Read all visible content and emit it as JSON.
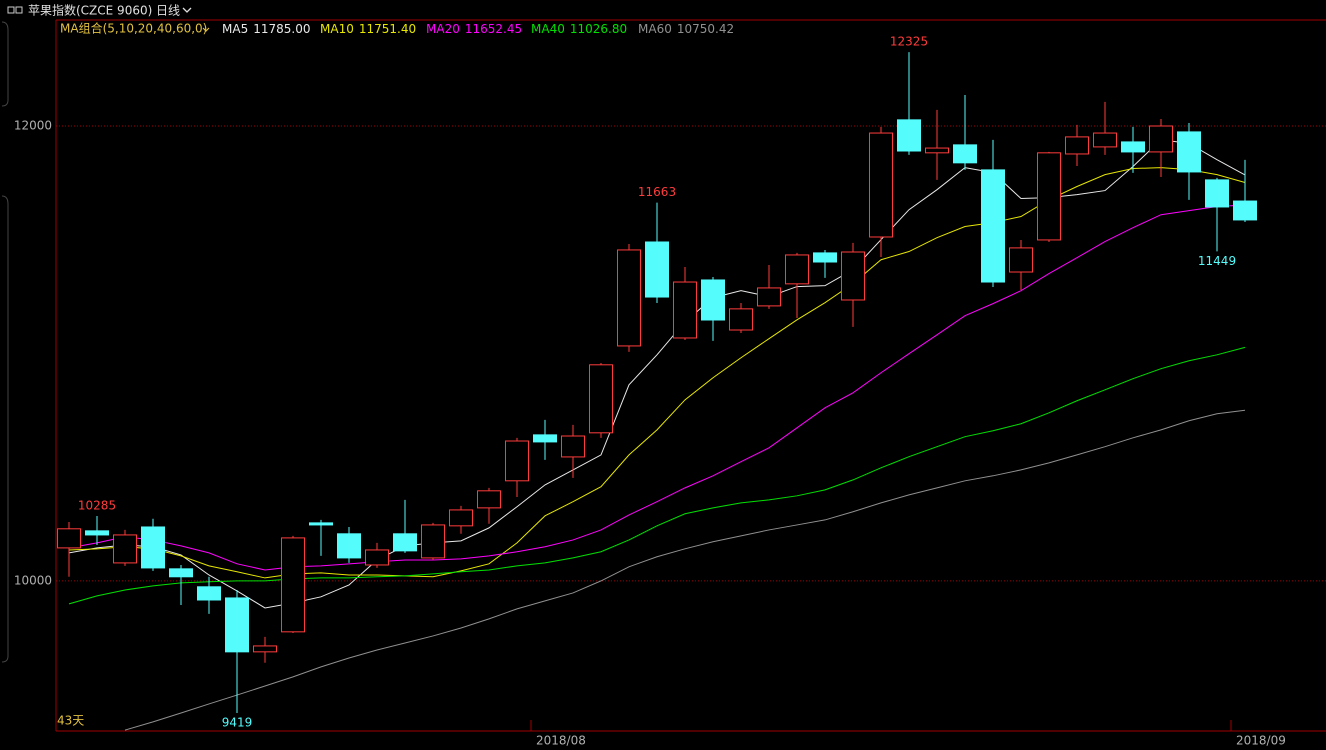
{
  "header": {
    "title": "苹果指数(CZCE 9060)",
    "period": "日线"
  },
  "chart_data": {
    "type": "candlestick",
    "categories": [
      null,
      null,
      null,
      null,
      null,
      null,
      null,
      null,
      null,
      null,
      null,
      null,
      null,
      null,
      null,
      null,
      null,
      "2018/08",
      null,
      null,
      null,
      null,
      null,
      null,
      null,
      null,
      null,
      null,
      null,
      null,
      null,
      null,
      null,
      null,
      null,
      null,
      null,
      null,
      null,
      null,
      null,
      null,
      "2018/09"
    ],
    "open": [
      10145,
      10220,
      10079,
      10237,
      10053,
      9974,
      9925,
      9688,
      9776,
      10255,
      10207,
      10070,
      10207,
      10101,
      10242,
      10321,
      10440,
      10642,
      10545,
      10651,
      11033,
      11490,
      11068,
      11323,
      11103,
      11209,
      11306,
      11442,
      11235,
      11512,
      12027,
      11882,
      11917,
      11807,
      11358,
      11499,
      11877,
      11908,
      11930,
      11886,
      11974,
      11763,
      11670
    ],
    "high": [
      10259,
      10285,
      10224,
      10273,
      10070,
      10018,
      9960,
      9754,
      10198,
      10268,
      10237,
      10167,
      10356,
      10255,
      10330,
      10409,
      10629,
      10708,
      10686,
      10958,
      11481,
      11663,
      11380,
      11336,
      11222,
      11389,
      11442,
      11455,
      11486,
      11996,
      12325,
      12071,
      12136,
      11939,
      11499,
      11886,
      12005,
      12106,
      11996,
      12031,
      12013,
      11772,
      11851
    ],
    "low": [
      10018,
      10158,
      10066,
      10044,
      9894,
      9855,
      9419,
      9640,
      9771,
      10110,
      10079,
      10057,
      10123,
      10092,
      10207,
      10251,
      10369,
      10532,
      10453,
      10629,
      11007,
      11222,
      11059,
      11055,
      11090,
      11196,
      11156,
      11332,
      11117,
      11424,
      11873,
      11763,
      11807,
      11292,
      11279,
      11490,
      11824,
      11873,
      11794,
      11776,
      11675,
      11449,
      11578
    ],
    "close": [
      10229,
      10202,
      10202,
      10057,
      10018,
      9916,
      9688,
      9714,
      10189,
      10246,
      10101,
      10136,
      10132,
      10246,
      10312,
      10396,
      10615,
      10611,
      10637,
      10950,
      11455,
      11248,
      11314,
      11147,
      11196,
      11288,
      11433,
      11402,
      11446,
      11969,
      11890,
      11903,
      11838,
      11314,
      11464,
      11882,
      11952,
      11969,
      11886,
      12000,
      11798,
      11644,
      11587
    ],
    "up_color": "#ff3c3c",
    "down_color": "#54fcfc",
    "ylim": [
      9340,
      12466
    ],
    "yticks": [
      10000,
      12000
    ],
    "grid": true,
    "ma_group_label": "MA组合(5,10,20,40,60,0)",
    "series": [
      {
        "name": "MA5",
        "color": "#e8e8e8",
        "last_label": "11785.00",
        "values": [
          10123,
          10145,
          10158,
          10150,
          10114,
          10026,
          9956,
          9881,
          9903,
          9930,
          9982,
          10092,
          10154,
          10167,
          10176,
          10233,
          10326,
          10422,
          10488,
          10554,
          10862,
          10994,
          11139,
          11245,
          11276,
          11250,
          11294,
          11298,
          11368,
          11500,
          11632,
          11720,
          11817,
          11795,
          11681,
          11685,
          11698,
          11716,
          11822,
          11940,
          11923,
          11852,
          11785
        ]
      },
      {
        "name": "MA10",
        "color": "#e6e600",
        "last_label": "11751.40",
        "values": [
          10136,
          10141,
          10150,
          10141,
          10110,
          10066,
          10040,
          10013,
          10031,
          10035,
          10026,
          10026,
          10022,
          10018,
          10044,
          10075,
          10167,
          10286,
          10348,
          10414,
          10554,
          10664,
          10796,
          10893,
          10981,
          11065,
          11148,
          11223,
          11307,
          11412,
          11448,
          11509,
          11558,
          11575,
          11602,
          11676,
          11734,
          11786,
          11813,
          11817,
          11808,
          11786,
          11751.4
        ]
      },
      {
        "name": "MA20",
        "color": "#ff00ff",
        "last_label": "11652.45",
        "values": [
          10145,
          10167,
          10194,
          10180,
          10154,
          10123,
          10075,
          10048,
          10062,
          10066,
          10075,
          10084,
          10092,
          10092,
          10097,
          10110,
          10128,
          10150,
          10180,
          10224,
          10290,
          10348,
          10409,
          10462,
          10524,
          10585,
          10673,
          10761,
          10827,
          10915,
          10999,
          11082,
          11166,
          11219,
          11276,
          11351,
          11421,
          11492,
          11553,
          11610,
          11628,
          11646,
          11652.45
        ]
      },
      {
        "name": "MA40",
        "color": "#00e000",
        "last_label": "11026.80",
        "values": [
          9899,
          9934,
          9960,
          9978,
          9991,
          9996,
          10000,
          10000,
          10009,
          10013,
          10013,
          10018,
          10022,
          10031,
          10040,
          10048,
          10066,
          10079,
          10101,
          10128,
          10180,
          10242,
          10295,
          10321,
          10343,
          10356,
          10374,
          10400,
          10444,
          10497,
          10546,
          10590,
          10634,
          10660,
          10691,
          10739,
          10792,
          10840,
          10889,
          10933,
          10968,
          10994,
          11026.8
        ]
      },
      {
        "name": "MA60",
        "color": "#909090",
        "last_label": "10750.42",
        "values": [
          null,
          null,
          9344,
          9380,
          9419,
          9459,
          9498,
          9538,
          9578,
          9622,
          9661,
          9696,
          9727,
          9758,
          9793,
          9833,
          9877,
          9912,
          9947,
          10000,
          10062,
          10106,
          10141,
          10172,
          10198,
          10224,
          10246,
          10268,
          10304,
          10343,
          10378,
          10409,
          10440,
          10462,
          10488,
          10519,
          10554,
          10590,
          10629,
          10664,
          10704,
          10735,
          10750.42
        ]
      }
    ],
    "extreme_labels": [
      {
        "index": 1,
        "at": "high",
        "color": "#ff3c3c"
      },
      {
        "index": 6,
        "at": "low",
        "color": "#54fcfc"
      },
      {
        "index": 21,
        "at": "high",
        "color": "#ff3c3c"
      },
      {
        "index": 30,
        "at": "high",
        "color": "#ff3c3c"
      },
      {
        "index": 41,
        "at": "low",
        "color": "#54fcfc"
      }
    ],
    "period_count_label": "43天"
  }
}
